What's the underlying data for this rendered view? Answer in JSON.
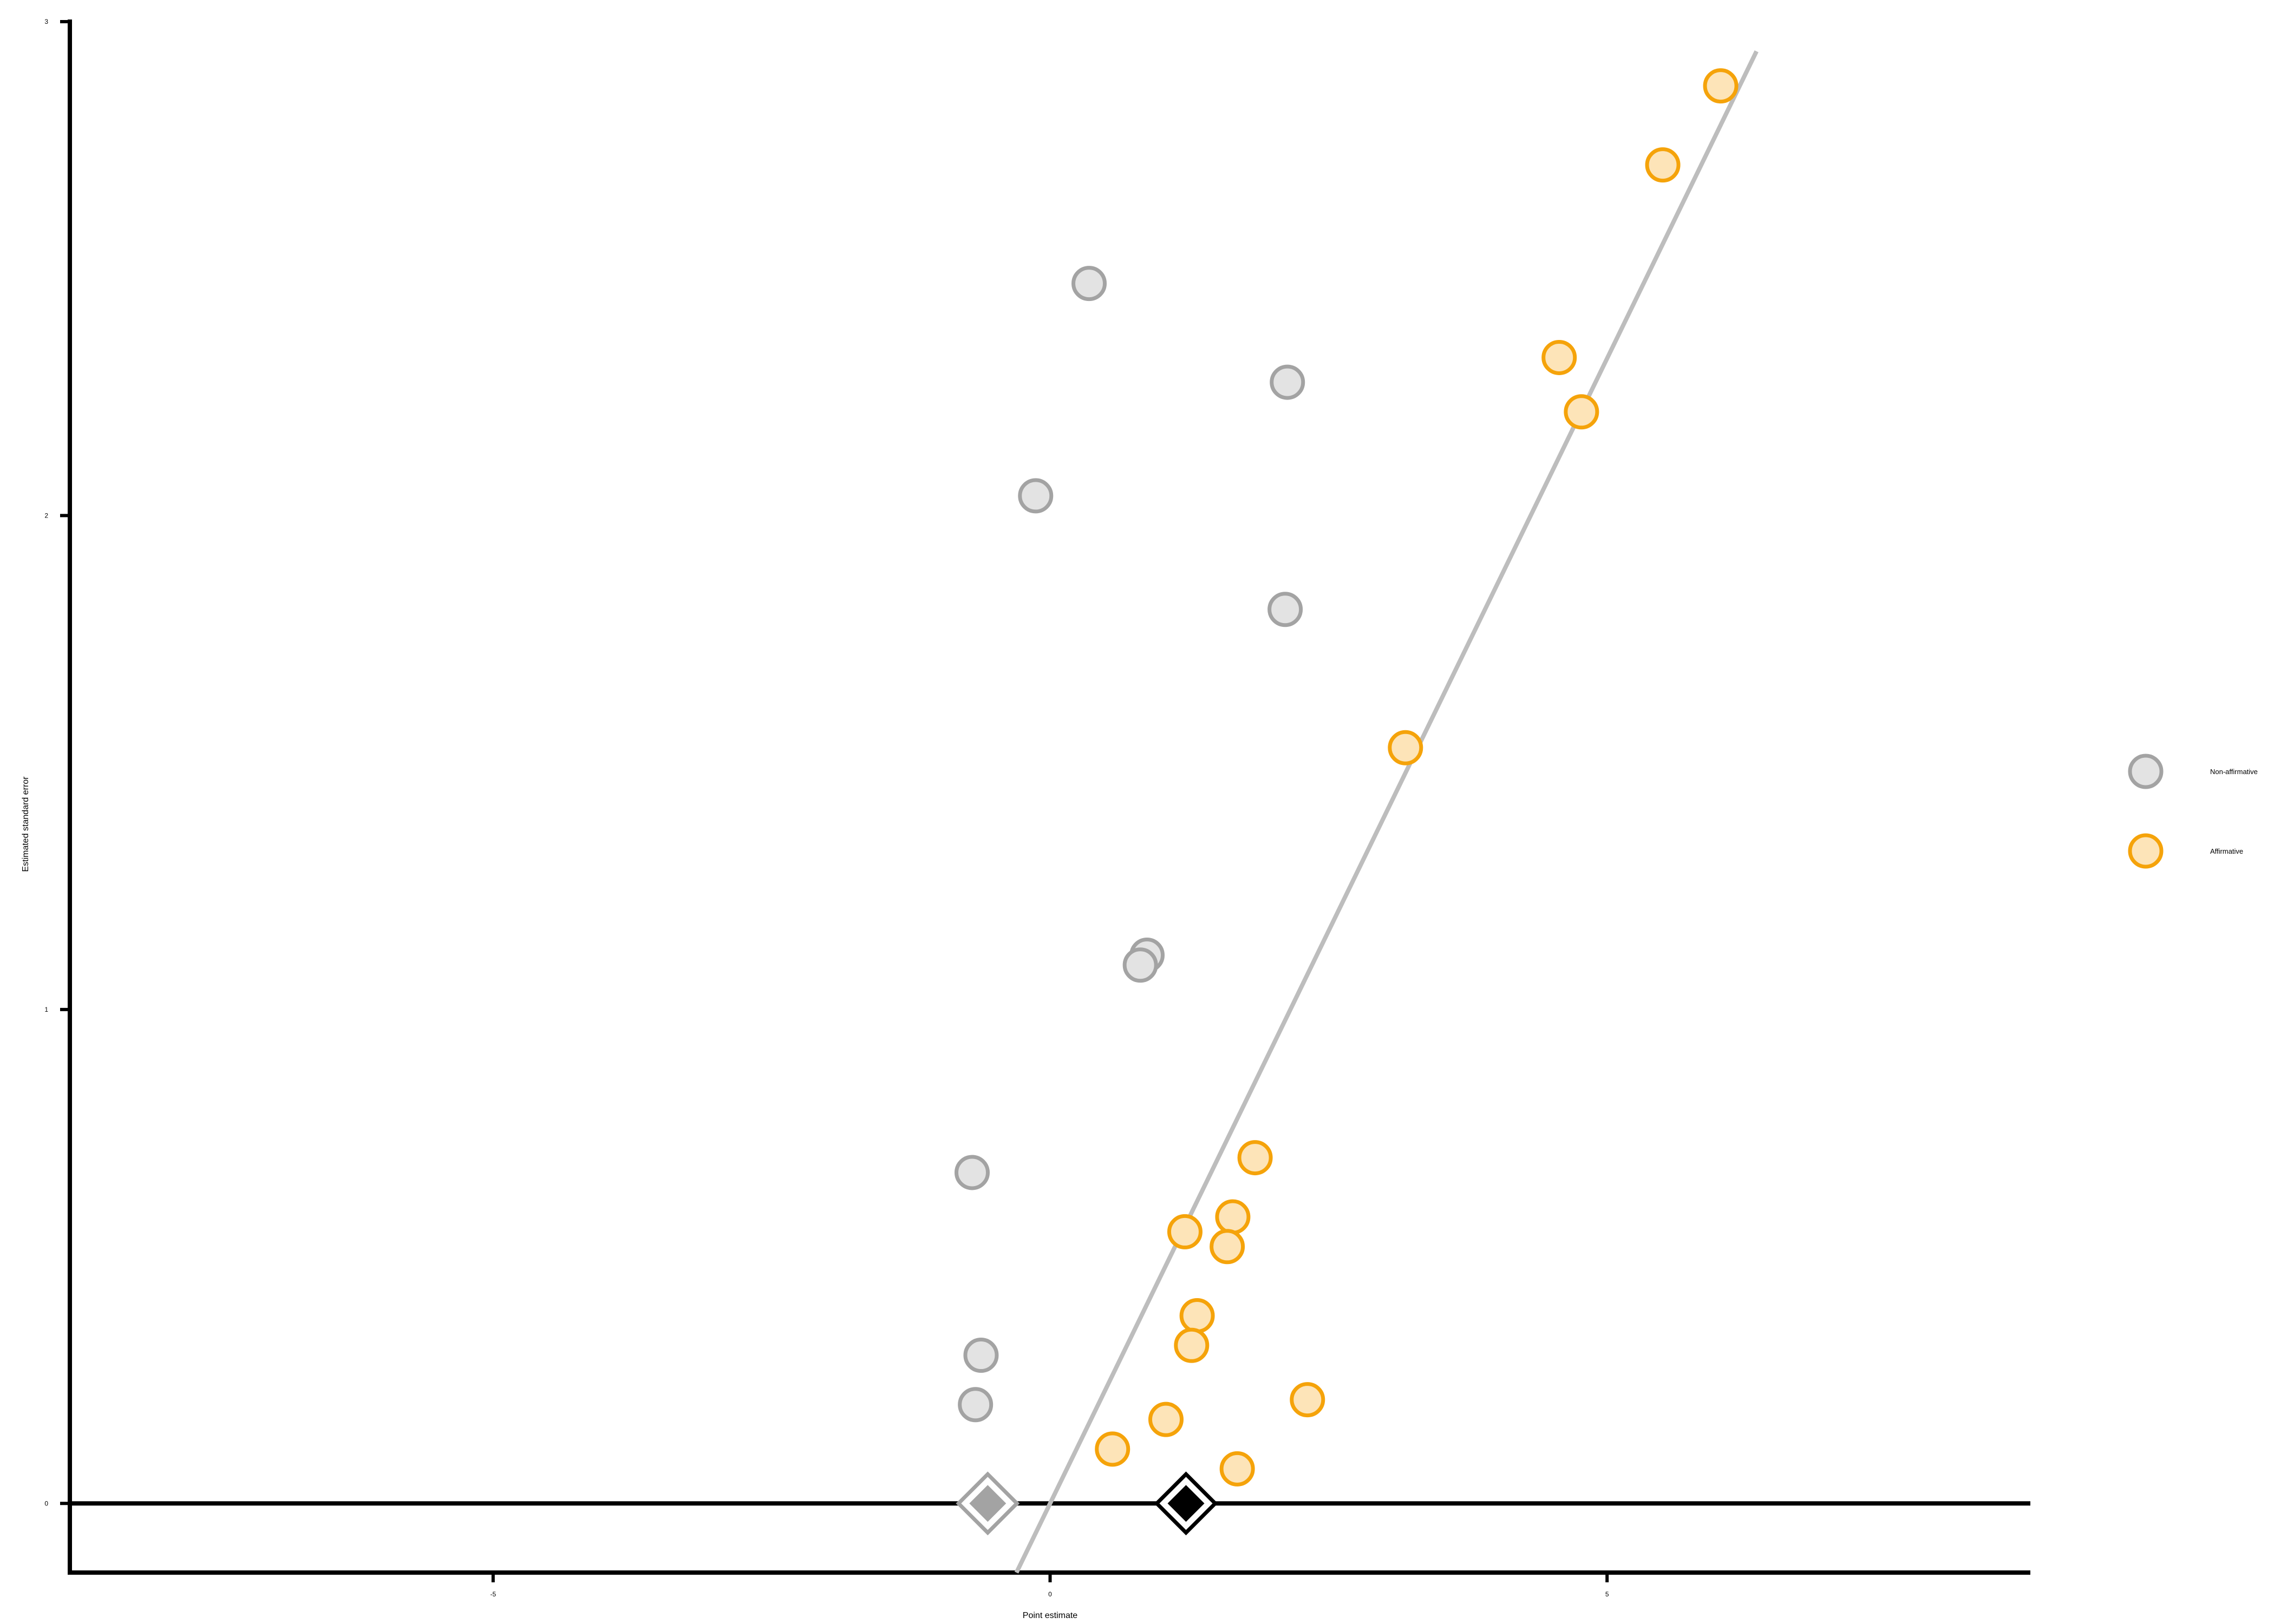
{
  "chart_data": {
    "type": "scatter",
    "title": "",
    "xlabel": "Point estimate",
    "ylabel": "Estimated standard error",
    "xlim": [
      -8.8,
      8.8
    ],
    "ylim": [
      -0.14,
      3.0
    ],
    "x_ticks": [
      -5,
      0,
      5
    ],
    "x_tick_labels": [
      "-5",
      "0",
      "5"
    ],
    "y_ticks": [
      0,
      1,
      2,
      3
    ],
    "y_tick_labels": [
      "0",
      "1",
      "2",
      "3"
    ],
    "grid": false,
    "legend_position": "right",
    "colors": {
      "non_affirmative_fill": "#e3e3e3",
      "non_affirmative_stroke": "#a3a3a3",
      "affirmative_fill": "#fde4b8",
      "affirmative_stroke": "#f5a30a",
      "line": "#bdbdbd",
      "axis": "#000000"
    },
    "reference_line": {
      "slope": 0.4636,
      "intercept": 0.0,
      "description": "significance threshold: estimate = 1.96 × SE"
    },
    "horizontal_line_y": 0,
    "series": [
      {
        "name": "Non-affirmative",
        "points": [
          {
            "x": 0.35,
            "y": 2.47
          },
          {
            "x": 2.13,
            "y": 2.27
          },
          {
            "x": -0.13,
            "y": 2.04
          },
          {
            "x": 2.11,
            "y": 1.81
          },
          {
            "x": 0.87,
            "y": 1.11
          },
          {
            "x": 0.81,
            "y": 1.09
          },
          {
            "x": -0.7,
            "y": 0.67
          },
          {
            "x": -0.62,
            "y": 0.3
          },
          {
            "x": -0.67,
            "y": 0.2
          }
        ]
      },
      {
        "name": "Affirmative",
        "points": [
          {
            "x": 6.02,
            "y": 2.87
          },
          {
            "x": 5.5,
            "y": 2.71
          },
          {
            "x": 4.57,
            "y": 2.32
          },
          {
            "x": 4.77,
            "y": 2.21
          },
          {
            "x": 3.19,
            "y": 1.53
          },
          {
            "x": 1.84,
            "y": 0.7
          },
          {
            "x": 1.64,
            "y": 0.58
          },
          {
            "x": 1.21,
            "y": 0.55
          },
          {
            "x": 1.59,
            "y": 0.52
          },
          {
            "x": 1.32,
            "y": 0.38
          },
          {
            "x": 1.27,
            "y": 0.32
          },
          {
            "x": 2.31,
            "y": 0.21
          },
          {
            "x": 1.04,
            "y": 0.17
          },
          {
            "x": 0.56,
            "y": 0.11
          },
          {
            "x": 1.68,
            "y": 0.07
          }
        ]
      }
    ],
    "summary_estimates": [
      {
        "x": -0.56,
        "y": 0,
        "fill": "#a3a3a3",
        "stroke": "#a3a3a3"
      },
      {
        "x": 1.22,
        "y": 0,
        "fill": "#000000",
        "stroke": "#000000"
      }
    ]
  }
}
